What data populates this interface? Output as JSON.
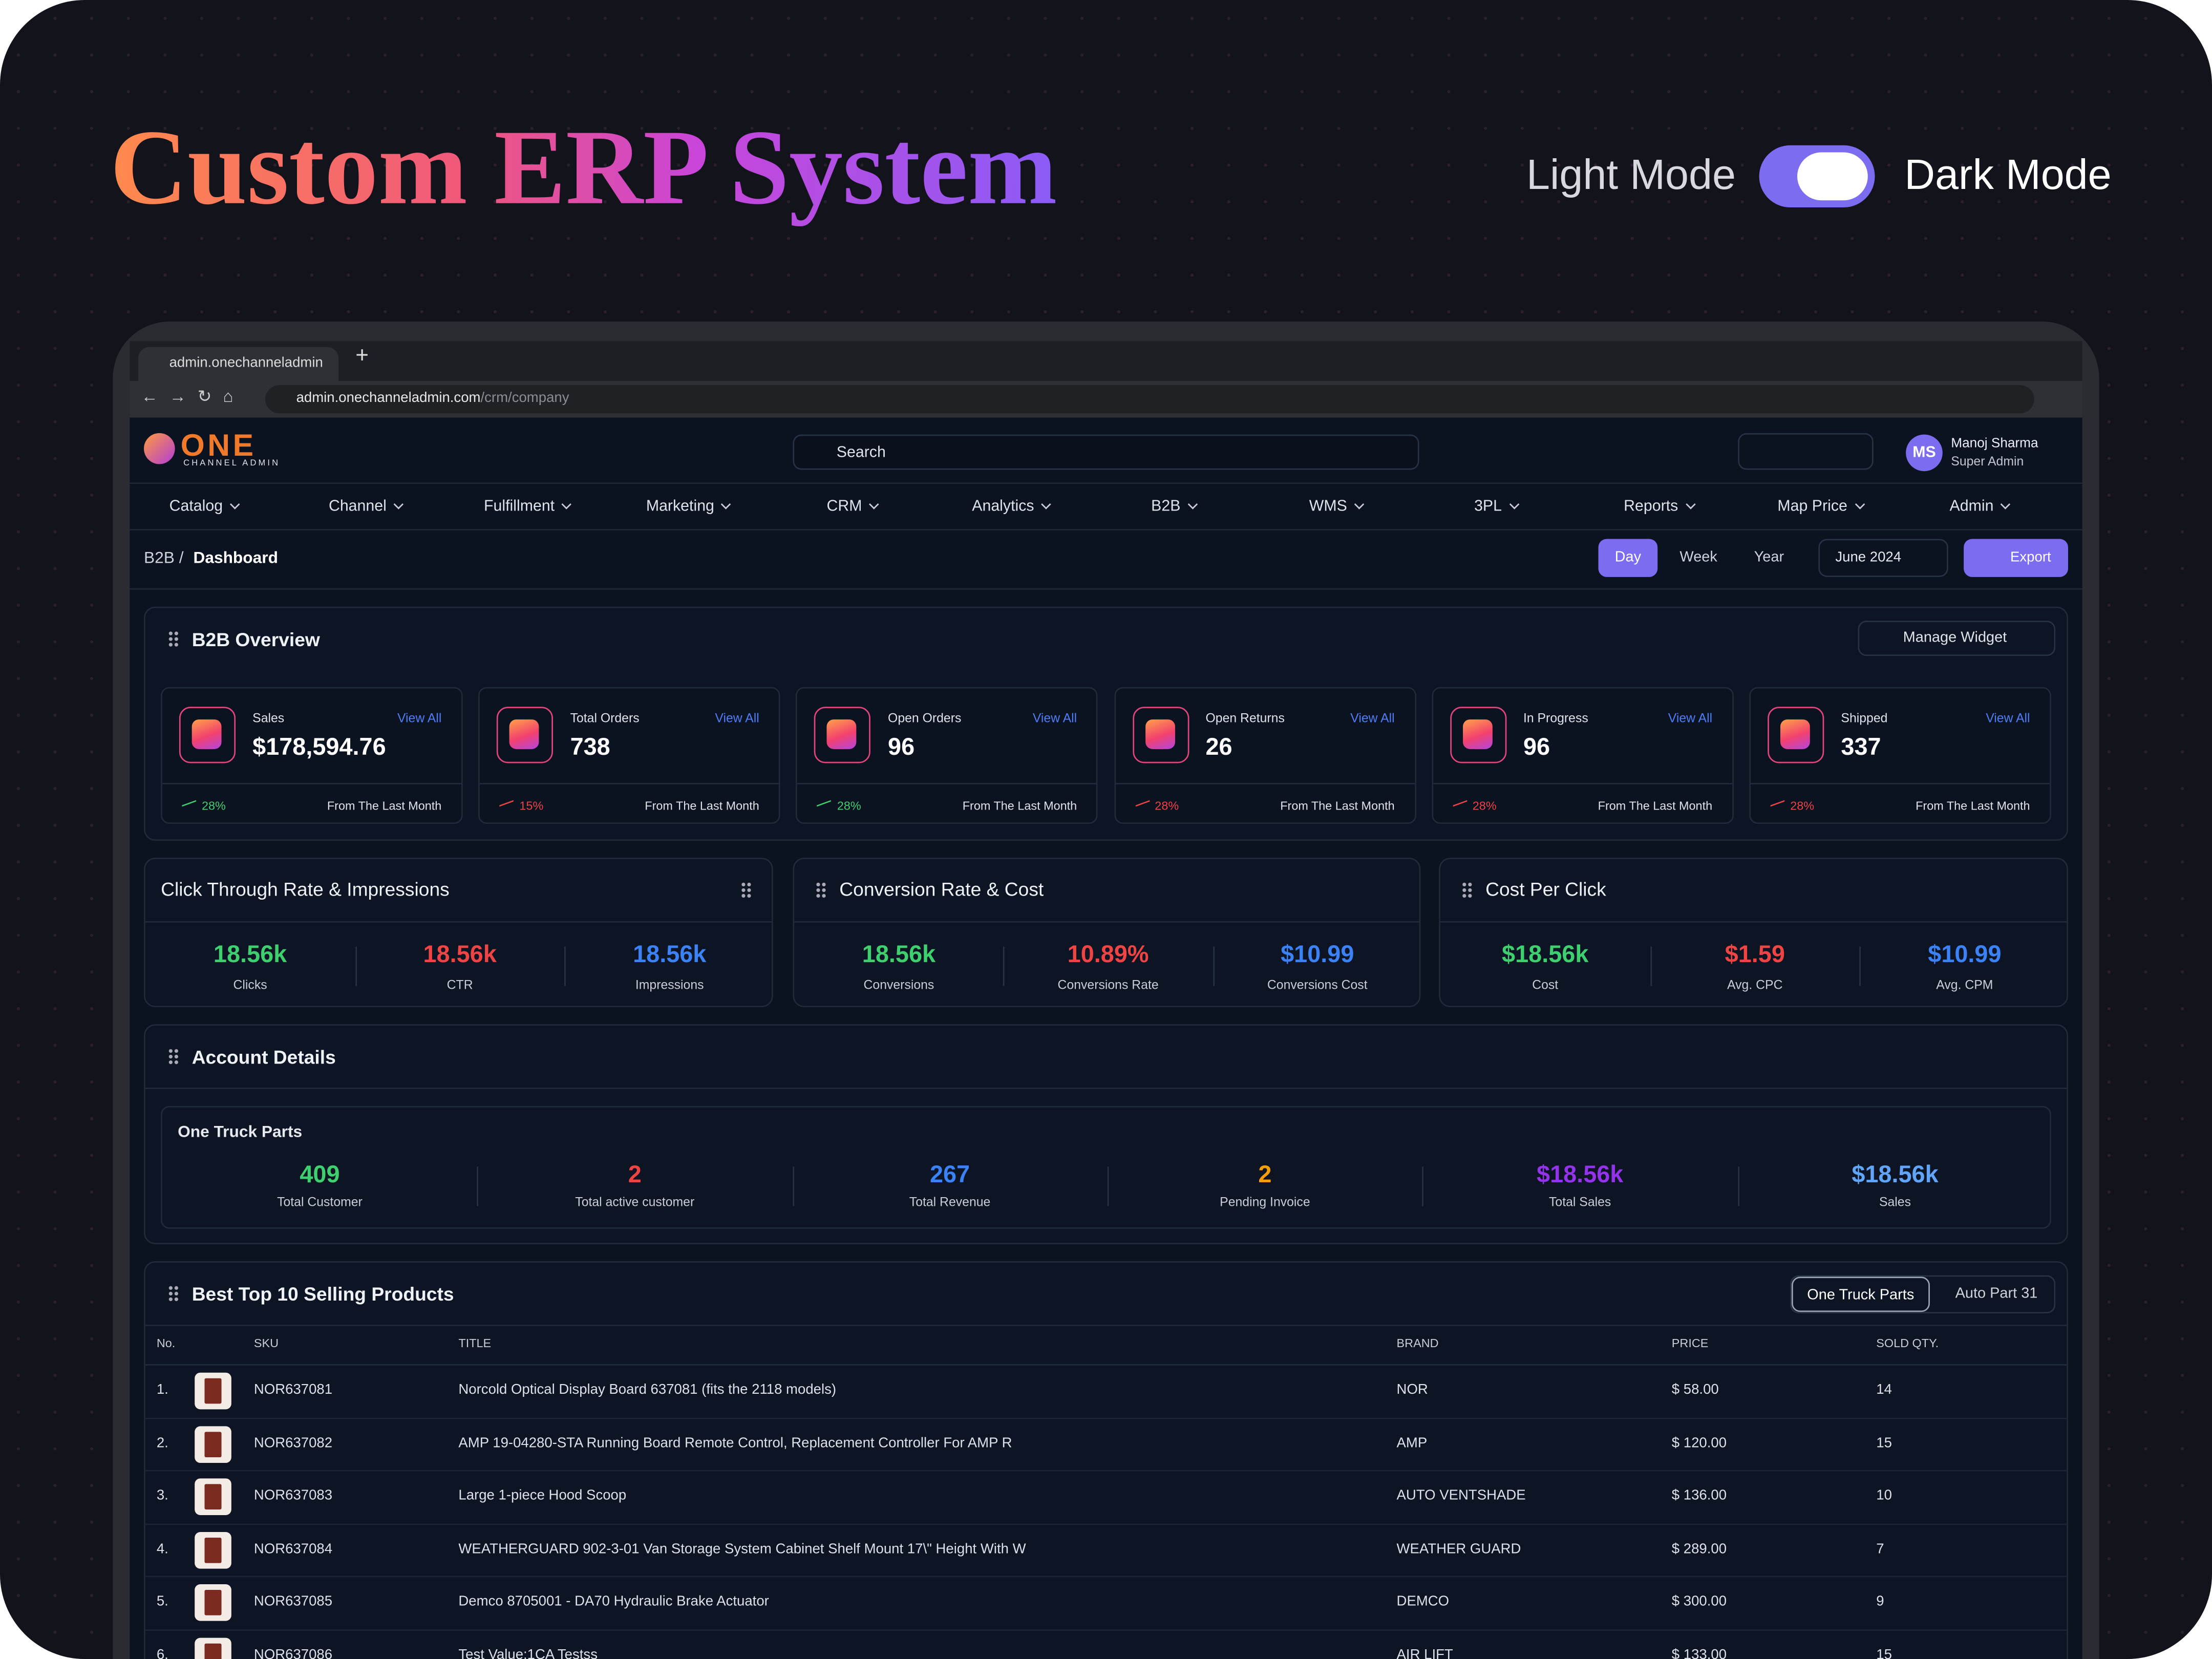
{
  "hero": {
    "title": "Custom ERP System",
    "light_mode": "Light Mode",
    "dark_mode": "Dark Mode"
  },
  "browser": {
    "tab": "admin.onechanneladmin",
    "url_host": "admin.onechanneladmin.com",
    "url_path": "/crm/company"
  },
  "header": {
    "logo": "ONE",
    "logo_sub": "CHANNEL ADMIN",
    "search": "Search",
    "user_initials": "MS",
    "user_name": "Manoj Sharma",
    "user_role": "Super Admin"
  },
  "nav": [
    "Catalog",
    "Channel",
    "Fulfillment",
    "Marketing",
    "CRM",
    "Analytics",
    "B2B",
    "WMS",
    "3PL",
    "Reports",
    "Map Price",
    "Admin"
  ],
  "toolbar": {
    "breadcrumb_parent": "B2B /",
    "breadcrumb_current": "Dashboard",
    "ranges": [
      "Day",
      "Week",
      "Year"
    ],
    "date": "June 2024",
    "export": "Export"
  },
  "overview": {
    "title": "B2B Overview",
    "manage": "Manage Widget",
    "cards": [
      {
        "label": "Sales",
        "link": "View All",
        "value": "$178,594.76",
        "change": "28%",
        "note": "From The Last Month",
        "trend_color": "#3ecf6e"
      },
      {
        "label": "Total Orders",
        "link": "View All",
        "value": "738",
        "change": "15%",
        "note": "From The Last Month",
        "trend_color": "#ef4444"
      },
      {
        "label": "Open Orders",
        "link": "View All",
        "value": "96",
        "change": "28%",
        "note": "From The Last Month",
        "trend_color": "#3ecf6e"
      },
      {
        "label": "Open Returns",
        "link": "View All",
        "value": "26",
        "change": "28%",
        "note": "From The Last Month",
        "trend_color": "#ef4444"
      },
      {
        "label": "In Progress",
        "link": "View All",
        "value": "96",
        "change": "28%",
        "note": "From The Last Month",
        "trend_color": "#ef4444"
      },
      {
        "label": "Shipped",
        "link": "View All",
        "value": "337",
        "change": "28%",
        "note": "From The Last Month",
        "trend_color": "#ef4444"
      }
    ]
  },
  "metric_panels": [
    {
      "title": "Click Through Rate & Impressions",
      "items": [
        {
          "value": "18.56k",
          "label": "Clicks",
          "color": "#3ecf6e"
        },
        {
          "value": "18.56k",
          "label": "CTR",
          "color": "#ef4444"
        },
        {
          "value": "18.56k",
          "label": "Impressions",
          "color": "#3b82f6"
        }
      ]
    },
    {
      "title": "Conversion Rate & Cost",
      "items": [
        {
          "value": "18.56k",
          "label": "Conversions",
          "color": "#3ecf6e"
        },
        {
          "value": "10.89%",
          "label": "Conversions Rate",
          "color": "#ef4444"
        },
        {
          "value": "$10.99",
          "label": "Conversions Cost",
          "color": "#3b82f6"
        }
      ]
    },
    {
      "title": "Cost Per Click",
      "items": [
        {
          "value": "$18.56k",
          "label": "Cost",
          "color": "#3ecf6e"
        },
        {
          "value": "$1.59",
          "label": "Avg. CPC",
          "color": "#ef4444"
        },
        {
          "value": "$10.99",
          "label": "Avg. CPM",
          "color": "#3b82f6"
        }
      ]
    }
  ],
  "account": {
    "title": "Account Details",
    "company": "One Truck Parts",
    "items": [
      {
        "value": "409",
        "label": "Total Customer",
        "color": "#3ecf6e"
      },
      {
        "value": "2",
        "label": "Total active customer",
        "color": "#ef4444"
      },
      {
        "value": "267",
        "label": "Total Revenue",
        "color": "#3b82f6"
      },
      {
        "value": "2",
        "label": "Pending Invoice",
        "color": "#f59e0b"
      },
      {
        "value": "$18.56k",
        "label": "Total Sales",
        "color": "#9333ea"
      },
      {
        "value": "$18.56k",
        "label": "Sales",
        "color": "#60a5fa"
      }
    ]
  },
  "products": {
    "title": "Best Top 10 Selling Products",
    "tabs": [
      "One Truck Parts",
      "Auto Part 31"
    ],
    "columns": [
      "No.",
      "SKU",
      "TITLE",
      "BRAND",
      "PRICE",
      "SOLD QTY."
    ],
    "rows": [
      [
        "1.",
        "NOR637081",
        "Norcold Optical Display Board 637081 (fits the 2118 models)",
        "NOR",
        "$ 58.00",
        "14"
      ],
      [
        "2.",
        "NOR637082",
        "AMP 19-04280-STA Running Board Remote Control, Replacement Controller For AMP R",
        "AMP",
        "$ 120.00",
        "15"
      ],
      [
        "3.",
        "NOR637083",
        "Large 1-piece Hood Scoop",
        "AUTO VENTSHADE",
        "$ 136.00",
        "10"
      ],
      [
        "4.",
        "NOR637084",
        "WEATHERGUARD 902-3-01 Van Storage System Cabinet Shelf Mount 17\\\" Height With W",
        "WEATHER GUARD",
        "$ 289.00",
        "7"
      ],
      [
        "5.",
        "NOR637085",
        "Demco 8705001 - DA70 Hydraulic Brake Actuator",
        "DEMCO",
        "$ 300.00",
        "9"
      ],
      [
        "6.",
        "NOR637086",
        "Test Value:1CA Testss",
        "AIR LIFT",
        "$ 133.00",
        "15"
      ]
    ]
  }
}
